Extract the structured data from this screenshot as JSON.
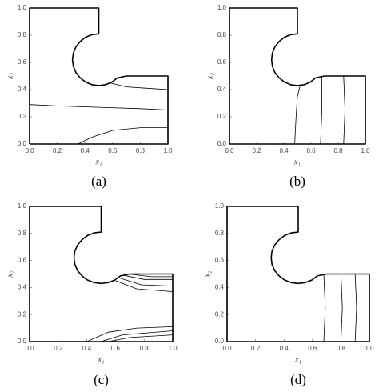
{
  "domain_boundary": {
    "x": [
      0,
      1,
      1,
      0.7,
      0.634,
      0.595,
      0.549,
      0.5,
      0.451,
      0.405,
      0.366,
      0.335,
      0.316,
      0.31,
      0.316,
      0.335,
      0.366,
      0.405,
      0.451,
      0.5,
      0.5,
      0,
      0
    ],
    "y": [
      0,
      0,
      0.5,
      0.5,
      0.486,
      0.455,
      0.436,
      0.43,
      0.436,
      0.455,
      0.486,
      0.525,
      0.571,
      0.62,
      0.669,
      0.715,
      0.754,
      0.785,
      0.804,
      0.81,
      1,
      1,
      0
    ]
  },
  "chart_data": [
    {
      "type": "line",
      "label": "(a)",
      "xlabel": "x₁",
      "ylabel": "x₂",
      "color": "#000000",
      "xlim": [
        0,
        1
      ],
      "ylim": [
        0,
        1
      ],
      "xticks": [
        {
          "value": 0,
          "label": "0.0"
        },
        0.2,
        0.4,
        0.6,
        0.8,
        {
          "value": 1,
          "label": "1.0"
        }
      ],
      "yticks": [
        {
          "value": 0,
          "label": "0.0"
        },
        0.2,
        0.4,
        0.6,
        0.8,
        {
          "value": 1,
          "label": "1.0"
        }
      ],
      "series": [
        {
          "x": [
            0.58,
            0.7,
            0.85,
            1
          ],
          "values": [
            0.45,
            0.42,
            0.41,
            0.4
          ]
        },
        {
          "x": [
            0,
            0.2,
            0.5,
            0.8,
            1
          ],
          "values": [
            0.29,
            0.28,
            0.27,
            0.26,
            0.25
          ]
        },
        {
          "x": [
            0.35,
            0.45,
            0.6,
            0.8,
            1
          ],
          "values": [
            0,
            0.05,
            0.1,
            0.12,
            0.12
          ]
        }
      ]
    },
    {
      "type": "line",
      "label": "(b)",
      "xlabel": "x₁",
      "ylabel": "x₂",
      "color": "#000000",
      "xlim": [
        0,
        1
      ],
      "ylim": [
        0,
        1
      ],
      "xticks": [
        {
          "value": 0,
          "label": "0.0"
        },
        0.2,
        0.4,
        0.6,
        0.8,
        {
          "value": 1,
          "label": "1.0"
        }
      ],
      "yticks": [
        {
          "value": 0,
          "label": "0.0"
        },
        0.2,
        0.4,
        0.6,
        0.8,
        {
          "value": 1,
          "label": "1.0"
        }
      ],
      "series": [
        {
          "x": [
            0.48,
            0.49,
            0.5,
            0.52
          ],
          "values": [
            0,
            0.2,
            0.35,
            0.43
          ]
        },
        {
          "x": [
            0.67,
            0.68,
            0.68
          ],
          "values": [
            0,
            0.25,
            0.5
          ]
        },
        {
          "x": [
            0.84,
            0.85,
            0.84
          ],
          "values": [
            0,
            0.25,
            0.5
          ]
        }
      ]
    },
    {
      "type": "line",
      "label": "(c)",
      "xlabel": "x₁",
      "ylabel": "x₂",
      "color": "#000000",
      "xlim": [
        0,
        1
      ],
      "ylim": [
        0,
        1
      ],
      "xticks": [
        {
          "value": 0,
          "label": "0.0"
        },
        0.2,
        0.4,
        0.6,
        0.8,
        {
          "value": 1,
          "label": "1.0"
        }
      ],
      "yticks": [
        {
          "value": 0,
          "label": "0.0"
        },
        0.2,
        0.4,
        0.6,
        0.8,
        {
          "value": 1,
          "label": "1.0"
        }
      ],
      "series": [
        {
          "x": [
            0.6,
            0.75,
            1
          ],
          "values": [
            0.45,
            0.39,
            0.37
          ]
        },
        {
          "x": [
            0.63,
            0.78,
            1
          ],
          "values": [
            0.47,
            0.42,
            0.41
          ]
        },
        {
          "x": [
            0.66,
            0.8,
            1
          ],
          "values": [
            0.49,
            0.46,
            0.46
          ]
        },
        {
          "x": [
            0.69,
            0.85,
            1
          ],
          "values": [
            0.5,
            0.48,
            0.48
          ]
        },
        {
          "x": [
            0.4,
            0.55,
            0.75,
            1
          ],
          "values": [
            0,
            0.07,
            0.1,
            0.11
          ]
        },
        {
          "x": [
            0.5,
            0.65,
            1
          ],
          "values": [
            0,
            0.05,
            0.08
          ]
        },
        {
          "x": [
            0.55,
            0.7,
            1
          ],
          "values": [
            0,
            0.03,
            0.05
          ]
        }
      ]
    },
    {
      "type": "line",
      "label": "(d)",
      "xlabel": "x₁",
      "ylabel": "x₂",
      "color": "#000000",
      "xlim": [
        0,
        1
      ],
      "ylim": [
        0,
        1
      ],
      "xticks": [
        {
          "value": 0,
          "label": "0.0"
        },
        0.2,
        0.4,
        0.6,
        0.8,
        {
          "value": 1,
          "label": "1.0"
        }
      ],
      "yticks": [
        {
          "value": 0,
          "label": "0.0"
        },
        0.2,
        0.4,
        0.6,
        0.8,
        {
          "value": 1,
          "label": "1.0"
        }
      ],
      "series": [
        {
          "x": [
            0.68,
            0.69,
            0.68
          ],
          "values": [
            0,
            0.25,
            0.5
          ]
        },
        {
          "x": [
            0.8,
            0.81,
            0.8
          ],
          "values": [
            0,
            0.25,
            0.5
          ]
        },
        {
          "x": [
            0.9,
            0.91,
            0.9
          ],
          "values": [
            0,
            0.25,
            0.5
          ]
        }
      ]
    }
  ]
}
